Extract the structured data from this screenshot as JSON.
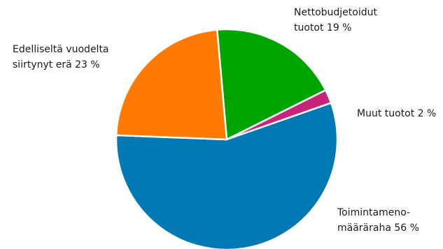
{
  "chart_data": {
    "type": "pie",
    "title": "",
    "slices": [
      {
        "label_lines": [
          "Nettobudjetoidut",
          "tuotot 19 %"
        ],
        "value": 19,
        "color": "#00a400"
      },
      {
        "label_lines": [
          "Muut tuotot 2 %"
        ],
        "value": 2,
        "color": "#c8247a"
      },
      {
        "label_lines": [
          "Toimintameno-",
          "määräraha 56 %"
        ],
        "value": 56,
        "color": "#0078b4"
      },
      {
        "label_lines": [
          "Edelliseltä vuodelta",
          "siirtynyt erä 23 %"
        ],
        "value": 23,
        "color": "#ff7a00"
      }
    ]
  }
}
